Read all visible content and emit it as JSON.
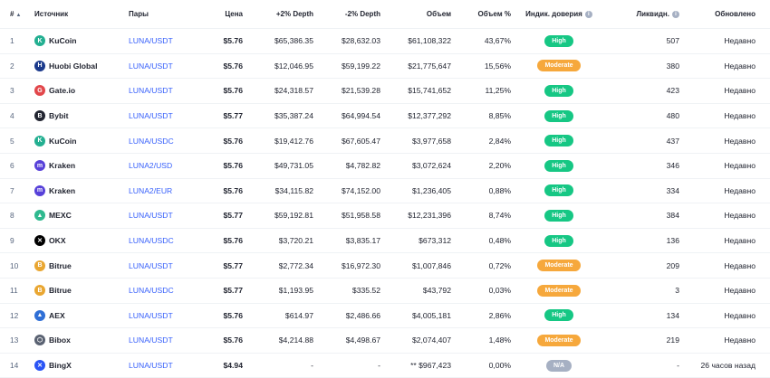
{
  "headers": {
    "num": "#",
    "source": "Источник",
    "pairs": "Пары",
    "price": "Цена",
    "depth_plus": "+2% Depth",
    "depth_minus": "-2% Depth",
    "volume": "Объем",
    "volume_pct": "Объем %",
    "trust": "Индик. доверия",
    "liquidity": "Ликвидн.",
    "updated": "Обновлено"
  },
  "colors": {
    "High": "#16c784",
    "Moderate": "#f6a83c",
    "N/A": "#a6b0c3",
    "link": "#3861fb"
  },
  "rows": [
    {
      "n": "1",
      "source": "KuCoin",
      "icon": "kucoin-logo-icon",
      "logo_color": "#23af91",
      "logo_char": "K",
      "pair": "LUNA/USDT",
      "price": "$5.76",
      "dplus": "$65,386.35",
      "dminus": "$28,632.03",
      "volume": "$61,108,322",
      "vpct": "43,67%",
      "trust": "High",
      "liq": "507",
      "upd": "Недавно"
    },
    {
      "n": "2",
      "source": "Huobi Global",
      "icon": "huobi-logo-icon",
      "logo_color": "#1b3a8c",
      "logo_char": "H",
      "pair": "LUNA/USDT",
      "price": "$5.76",
      "dplus": "$12,046.95",
      "dminus": "$59,199.22",
      "volume": "$21,775,647",
      "vpct": "15,56%",
      "trust": "Moderate",
      "liq": "380",
      "upd": "Недавно"
    },
    {
      "n": "3",
      "source": "Gate.io",
      "icon": "gateio-logo-icon",
      "logo_color": "#e2474b",
      "logo_char": "G",
      "pair": "LUNA/USDT",
      "price": "$5.76",
      "dplus": "$24,318.57",
      "dminus": "$21,539.28",
      "volume": "$15,741,652",
      "vpct": "11,25%",
      "trust": "High",
      "liq": "423",
      "upd": "Недавно"
    },
    {
      "n": "4",
      "source": "Bybit",
      "icon": "bybit-logo-icon",
      "logo_color": "#222531",
      "logo_char": "B",
      "pair": "LUNA/USDT",
      "price": "$5.77",
      "dplus": "$35,387.24",
      "dminus": "$64,994.54",
      "volume": "$12,377,292",
      "vpct": "8,85%",
      "trust": "High",
      "liq": "480",
      "upd": "Недавно"
    },
    {
      "n": "5",
      "source": "KuCoin",
      "icon": "kucoin-logo-icon",
      "logo_color": "#23af91",
      "logo_char": "K",
      "pair": "LUNA/USDC",
      "price": "$5.76",
      "dplus": "$19,412.76",
      "dminus": "$67,605.47",
      "volume": "$3,977,658",
      "vpct": "2,84%",
      "trust": "High",
      "liq": "437",
      "upd": "Недавно"
    },
    {
      "n": "6",
      "source": "Kraken",
      "icon": "kraken-logo-icon",
      "logo_color": "#5741d9",
      "logo_char": "m",
      "pair": "LUNA2/USD",
      "price": "$5.76",
      "dplus": "$49,731.05",
      "dminus": "$4,782.82",
      "volume": "$3,072,624",
      "vpct": "2,20%",
      "trust": "High",
      "liq": "346",
      "upd": "Недавно"
    },
    {
      "n": "7",
      "source": "Kraken",
      "icon": "kraken-logo-icon",
      "logo_color": "#5741d9",
      "logo_char": "m",
      "pair": "LUNA2/EUR",
      "price": "$5.76",
      "dplus": "$34,115.82",
      "dminus": "$74,152.00",
      "volume": "$1,236,405",
      "vpct": "0,88%",
      "trust": "High",
      "liq": "334",
      "upd": "Недавно"
    },
    {
      "n": "8",
      "source": "MEXC",
      "icon": "mexc-logo-icon",
      "logo_color": "#2fb98f",
      "logo_char": "▲",
      "pair": "LUNA/USDT",
      "price": "$5.77",
      "dplus": "$59,192.81",
      "dminus": "$51,958.58",
      "volume": "$12,231,396",
      "vpct": "8,74%",
      "trust": "High",
      "liq": "384",
      "upd": "Недавно"
    },
    {
      "n": "9",
      "source": "OKX",
      "icon": "okx-logo-icon",
      "logo_color": "#000000",
      "logo_char": "✕",
      "pair": "LUNA/USDC",
      "price": "$5.76",
      "dplus": "$3,720.21",
      "dminus": "$3,835.17",
      "volume": "$673,312",
      "vpct": "0,48%",
      "trust": "High",
      "liq": "136",
      "upd": "Недавно"
    },
    {
      "n": "10",
      "source": "Bitrue",
      "icon": "bitrue-logo-icon",
      "logo_color": "#e9a631",
      "logo_char": "B",
      "pair": "LUNA/USDT",
      "price": "$5.77",
      "dplus": "$2,772.34",
      "dminus": "$16,972.30",
      "volume": "$1,007,846",
      "vpct": "0,72%",
      "trust": "Moderate",
      "liq": "209",
      "upd": "Недавно"
    },
    {
      "n": "11",
      "source": "Bitrue",
      "icon": "bitrue-logo-icon",
      "logo_color": "#e9a631",
      "logo_char": "B",
      "pair": "LUNA/USDC",
      "price": "$5.77",
      "dplus": "$1,193.95",
      "dminus": "$335.52",
      "volume": "$43,792",
      "vpct": "0,03%",
      "trust": "Moderate",
      "liq": "3",
      "upd": "Недавно"
    },
    {
      "n": "12",
      "source": "AEX",
      "icon": "aex-logo-icon",
      "logo_color": "#2f6fd6",
      "logo_char": "▲",
      "pair": "LUNA/USDT",
      "price": "$5.76",
      "dplus": "$614.97",
      "dminus": "$2,486.66",
      "volume": "$4,005,181",
      "vpct": "2,86%",
      "trust": "High",
      "liq": "134",
      "upd": "Недавно"
    },
    {
      "n": "13",
      "source": "Bibox",
      "icon": "bibox-logo-icon",
      "logo_color": "#5a6272",
      "logo_char": "⬡",
      "pair": "LUNA/USDT",
      "price": "$5.76",
      "dplus": "$4,214.88",
      "dminus": "$4,498.67",
      "volume": "$2,074,407",
      "vpct": "1,48%",
      "trust": "Moderate",
      "liq": "219",
      "upd": "Недавно"
    },
    {
      "n": "14",
      "source": "BingX",
      "icon": "bingx-logo-icon",
      "logo_color": "#2a54f5",
      "logo_char": "✕",
      "pair": "LUNA/USDT",
      "price": "$4.94",
      "dplus": "-",
      "dminus": "-",
      "volume": "** $967,423",
      "vpct": "0,00%",
      "trust": "N/A",
      "liq": "-",
      "upd": "26 часов назад"
    }
  ]
}
